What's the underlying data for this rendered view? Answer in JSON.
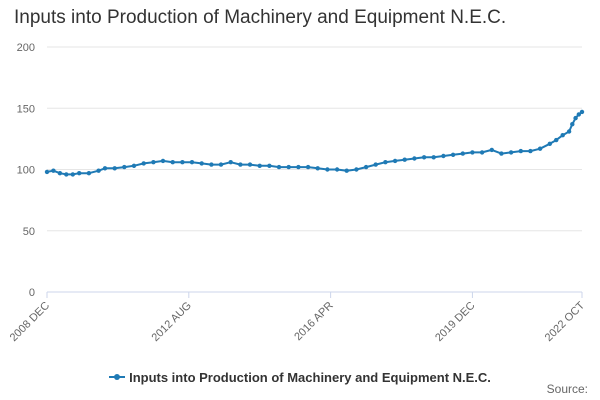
{
  "chart_data": {
    "type": "line",
    "title": "Inputs into Production of Machinery and Equipment N.E.C.",
    "xlabel": "",
    "ylabel": "",
    "ylim": [
      0,
      200
    ],
    "yticks": [
      0,
      50,
      100,
      150,
      200
    ],
    "xlim": [
      "2008-12",
      "2022-10"
    ],
    "xticks": [
      "2008 DEC",
      "2012 AUG",
      "2016 APR",
      "2019 DEC",
      "2022 OCT"
    ],
    "grid": "horizontal",
    "legend_position": "bottom-center",
    "series": [
      {
        "name": "Inputs into Production of Machinery and Equipment N.E.C.",
        "color": "#1f7ab5",
        "points": [
          [
            "2008-12",
            98
          ],
          [
            "2009-02",
            99
          ],
          [
            "2009-04",
            97
          ],
          [
            "2009-06",
            96
          ],
          [
            "2009-08",
            96
          ],
          [
            "2009-10",
            97
          ],
          [
            "2010-01",
            97
          ],
          [
            "2010-04",
            99
          ],
          [
            "2010-06",
            101
          ],
          [
            "2010-09",
            101
          ],
          [
            "2010-12",
            102
          ],
          [
            "2011-03",
            103
          ],
          [
            "2011-06",
            105
          ],
          [
            "2011-09",
            106
          ],
          [
            "2011-12",
            107
          ],
          [
            "2012-03",
            106
          ],
          [
            "2012-06",
            106
          ],
          [
            "2012-09",
            106
          ],
          [
            "2012-12",
            105
          ],
          [
            "2013-03",
            104
          ],
          [
            "2013-06",
            104
          ],
          [
            "2013-09",
            106
          ],
          [
            "2013-12",
            104
          ],
          [
            "2014-03",
            104
          ],
          [
            "2014-06",
            103
          ],
          [
            "2014-09",
            103
          ],
          [
            "2014-12",
            102
          ],
          [
            "2015-03",
            102
          ],
          [
            "2015-06",
            102
          ],
          [
            "2015-09",
            102
          ],
          [
            "2015-12",
            101
          ],
          [
            "2016-03",
            100
          ],
          [
            "2016-06",
            100
          ],
          [
            "2016-09",
            99
          ],
          [
            "2016-12",
            100
          ],
          [
            "2017-03",
            102
          ],
          [
            "2017-06",
            104
          ],
          [
            "2017-09",
            106
          ],
          [
            "2017-12",
            107
          ],
          [
            "2018-03",
            108
          ],
          [
            "2018-06",
            109
          ],
          [
            "2018-09",
            110
          ],
          [
            "2018-12",
            110
          ],
          [
            "2019-03",
            111
          ],
          [
            "2019-06",
            112
          ],
          [
            "2019-09",
            113
          ],
          [
            "2019-12",
            114
          ],
          [
            "2020-03",
            114
          ],
          [
            "2020-06",
            116
          ],
          [
            "2020-09",
            113
          ],
          [
            "2020-12",
            114
          ],
          [
            "2021-03",
            115
          ],
          [
            "2021-06",
            115
          ],
          [
            "2021-09",
            117
          ],
          [
            "2021-12",
            121
          ],
          [
            "2022-02",
            124
          ],
          [
            "2022-04",
            128
          ],
          [
            "2022-06",
            131
          ],
          [
            "2022-07",
            137
          ],
          [
            "2022-08",
            142
          ],
          [
            "2022-09",
            145
          ],
          [
            "2022-10",
            147
          ]
        ]
      }
    ]
  },
  "source": {
    "label": "Source:"
  }
}
